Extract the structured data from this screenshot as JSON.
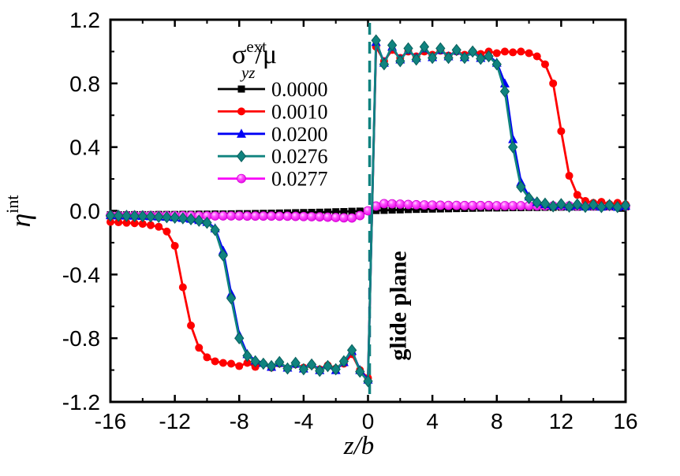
{
  "figure": {
    "background": "#ffffff",
    "accessible_title": "Plot of eta-int versus z/b for several applied stresses"
  },
  "chart_data": {
    "type": "line",
    "title": "",
    "xlabel": "z/b",
    "ylabel_base": "η",
    "ylabel_sup": "int",
    "xlim": [
      -16,
      16
    ],
    "ylim": [
      -1.2,
      1.2
    ],
    "grid": false,
    "frame": true,
    "x_major_ticks": [
      -16,
      -12,
      -8,
      -4,
      0,
      4,
      8,
      12,
      16
    ],
    "x_tick_labels": [
      "-16",
      "-12",
      "-8",
      "-4",
      "0",
      "4",
      "8",
      "12",
      "16"
    ],
    "x_minor_step": 2,
    "y_major_ticks": [
      -1.2,
      -0.8,
      -0.4,
      0,
      0.4,
      0.8,
      1.2
    ],
    "y_tick_labels": [
      "-1.2",
      "-0.8",
      "-0.4",
      "0.0",
      "0.4",
      "0.8",
      "1.2"
    ],
    "y_minor_step": 0.2,
    "legend": {
      "position": "top-left-inside",
      "title_base": "σ",
      "title_sup": "ext",
      "title_sub": "yz",
      "title_suffix": "/μ"
    },
    "annotations": [
      {
        "type": "vline",
        "x": 0.1,
        "style": "dashed",
        "color": "#10837f",
        "label": "glide plane"
      }
    ],
    "x": [
      -16,
      -15.5,
      -15,
      -14.5,
      -14,
      -13.5,
      -13,
      -12.5,
      -12,
      -11.5,
      -11,
      -10.5,
      -10,
      -9.5,
      -9,
      -8.5,
      -8,
      -7.5,
      -7,
      -6.5,
      -6,
      -5.5,
      -5,
      -4.5,
      -4,
      -3.5,
      -3,
      -2.5,
      -2,
      -1.5,
      -1,
      -0.5,
      0,
      0.5,
      1,
      1.5,
      2,
      2.5,
      3,
      3.5,
      4,
      4.5,
      5,
      5.5,
      6,
      6.5,
      7,
      7.5,
      8,
      8.5,
      9,
      9.5,
      10,
      10.5,
      11,
      11.5,
      12,
      12.5,
      13,
      13.5,
      14,
      14.5,
      15,
      15.5,
      16
    ],
    "series": [
      {
        "label": "0.0000",
        "color": "#000000",
        "marker": "square",
        "values": [
          -0.025,
          -0.025,
          -0.025,
          -0.024,
          -0.024,
          -0.024,
          -0.023,
          -0.023,
          -0.023,
          -0.022,
          -0.022,
          -0.021,
          -0.021,
          -0.02,
          -0.02,
          -0.019,
          -0.018,
          -0.018,
          -0.017,
          -0.016,
          -0.015,
          -0.014,
          -0.013,
          -0.012,
          -0.011,
          -0.01,
          -0.009,
          -0.008,
          -0.006,
          -0.005,
          -0.003,
          -0.002,
          0,
          0.002,
          0.003,
          0.005,
          0.006,
          0.008,
          0.009,
          0.01,
          0.011,
          0.012,
          0.013,
          0.014,
          0.015,
          0.016,
          0.017,
          0.018,
          0.018,
          0.019,
          0.02,
          0.02,
          0.021,
          0.021,
          0.022,
          0.022,
          0.023,
          0.023,
          0.023,
          0.024,
          0.024,
          0.024,
          0.025,
          0.025,
          0.025
        ]
      },
      {
        "label": "0.0277",
        "color": "#f800f8",
        "marker": "ball",
        "values": [
          -0.03,
          -0.03,
          -0.03,
          -0.03,
          -0.03,
          -0.03,
          -0.031,
          -0.031,
          -0.031,
          -0.031,
          -0.031,
          -0.032,
          -0.032,
          -0.032,
          -0.032,
          -0.032,
          -0.032,
          -0.033,
          -0.033,
          -0.033,
          -0.033,
          -0.034,
          -0.034,
          -0.035,
          -0.036,
          -0.037,
          -0.038,
          -0.04,
          -0.042,
          -0.044,
          -0.045,
          -0.03,
          0,
          0.03,
          0.045,
          0.044,
          0.042,
          0.04,
          0.038,
          0.037,
          0.036,
          0.035,
          0.034,
          0.034,
          0.033,
          0.033,
          0.033,
          0.033,
          0.032,
          0.032,
          0.032,
          0.032,
          0.032,
          0.031,
          0.031,
          0.031,
          0.031,
          0.031,
          0.03,
          0.03,
          0.03,
          0.03,
          0.03,
          0.03,
          0.03
        ]
      },
      {
        "label": "0.0010",
        "color": "#fe0000",
        "marker": "circle",
        "values": [
          -0.07,
          -0.072,
          -0.075,
          -0.078,
          -0.082,
          -0.09,
          -0.1,
          -0.13,
          -0.22,
          -0.48,
          -0.72,
          -0.86,
          -0.92,
          -0.945,
          -0.955,
          -0.96,
          -0.975,
          -0.955,
          -0.98,
          -0.96,
          -0.985,
          -0.96,
          -0.99,
          -0.965,
          -0.985,
          -0.97,
          -0.995,
          -0.97,
          -0.99,
          -0.96,
          -0.9,
          -1.0,
          -1.05,
          1.03,
          0.94,
          1.01,
          0.96,
          1.0,
          0.97,
          1.0,
          0.98,
          1.005,
          0.975,
          1.0,
          0.98,
          1.0,
          0.985,
          1.0,
          0.99,
          1.0,
          0.995,
          1.0,
          0.99,
          0.97,
          0.92,
          0.8,
          0.5,
          0.22,
          0.1,
          0.062,
          0.05,
          0.056,
          0.042,
          0.05,
          0.04
        ]
      },
      {
        "label": "0.0200",
        "color": "#0000f5",
        "marker": "triangle",
        "values": [
          -0.028,
          -0.029,
          -0.03,
          -0.031,
          -0.032,
          -0.034,
          -0.036,
          -0.038,
          -0.041,
          -0.045,
          -0.05,
          -0.058,
          -0.07,
          -0.11,
          -0.25,
          -0.52,
          -0.78,
          -0.9,
          -0.94,
          -0.955,
          -0.98,
          -0.955,
          -0.985,
          -0.96,
          -0.99,
          -0.96,
          -1.0,
          -0.97,
          -1.0,
          -0.95,
          -0.88,
          -1.0,
          -1.06,
          1.06,
          0.93,
          1.03,
          0.95,
          1.01,
          0.96,
          1.02,
          0.965,
          1.01,
          0.97,
          1.005,
          0.965,
          1.0,
          0.96,
          0.975,
          0.93,
          0.8,
          0.45,
          0.18,
          0.09,
          0.055,
          0.042,
          0.032,
          0.04,
          0.029,
          0.037,
          0.027,
          0.035,
          0.026,
          0.034,
          0.025,
          0.032
        ]
      },
      {
        "label": "0.0276",
        "color": "#10837f",
        "marker": "diamond",
        "values": [
          -0.03,
          -0.031,
          -0.032,
          -0.033,
          -0.034,
          -0.036,
          -0.038,
          -0.04,
          -0.043,
          -0.047,
          -0.053,
          -0.062,
          -0.075,
          -0.12,
          -0.28,
          -0.55,
          -0.8,
          -0.91,
          -0.945,
          -0.96,
          -0.975,
          -0.95,
          -0.99,
          -0.955,
          -0.995,
          -0.965,
          -1.005,
          -0.975,
          -0.995,
          -0.945,
          -0.875,
          -1.01,
          -1.07,
          1.07,
          0.92,
          1.04,
          0.94,
          1.02,
          0.95,
          1.03,
          0.96,
          1.02,
          0.96,
          1.01,
          0.96,
          1.0,
          0.955,
          0.97,
          0.92,
          0.75,
          0.4,
          0.15,
          0.08,
          0.052,
          0.045,
          0.028,
          0.042,
          0.026,
          0.04,
          0.025,
          0.038,
          0.024,
          0.036,
          0.024,
          0.034
        ]
      }
    ],
    "legend_order": [
      "0.0000",
      "0.0010",
      "0.0200",
      "0.0276",
      "0.0277"
    ]
  }
}
